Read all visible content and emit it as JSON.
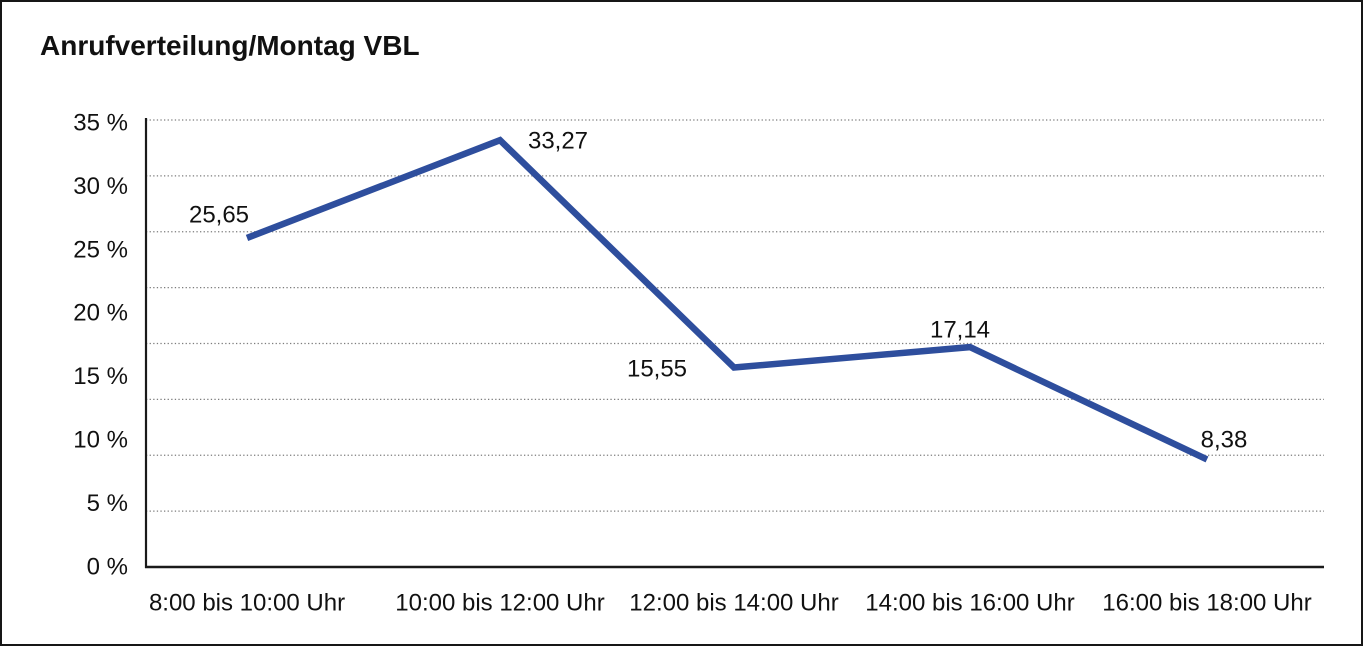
{
  "chart_data": {
    "type": "line",
    "title": "Anrufverteilung/Montag VBL",
    "categories": [
      "8:00 bis 10:00 Uhr",
      "10:00 bis 12:00 Uhr",
      "12:00 bis 14:00 Uhr",
      "14:00 bis 16:00 Uhr",
      "16:00 bis 18:00 Uhr"
    ],
    "values": [
      25.65,
      33.27,
      15.55,
      17.14,
      8.38
    ],
    "value_labels": [
      "25,65",
      "33,27",
      "15,55",
      "17,14",
      "8,38"
    ],
    "y_tick_labels": [
      "35 %",
      "30 %",
      "25 %",
      "20 %",
      "15 %",
      "10 %",
      "5 %",
      "0 %"
    ],
    "ylim": [
      0,
      35
    ],
    "xlabel": "",
    "ylabel": "",
    "legend": "none",
    "grid": "horizontal-dotted",
    "colors": {
      "line": "#2e4e9d",
      "axis": "#1a1a1a",
      "gridline": "#7d7d7d",
      "text": "#111111",
      "background": "#ffffff",
      "border": "#161616"
    }
  }
}
